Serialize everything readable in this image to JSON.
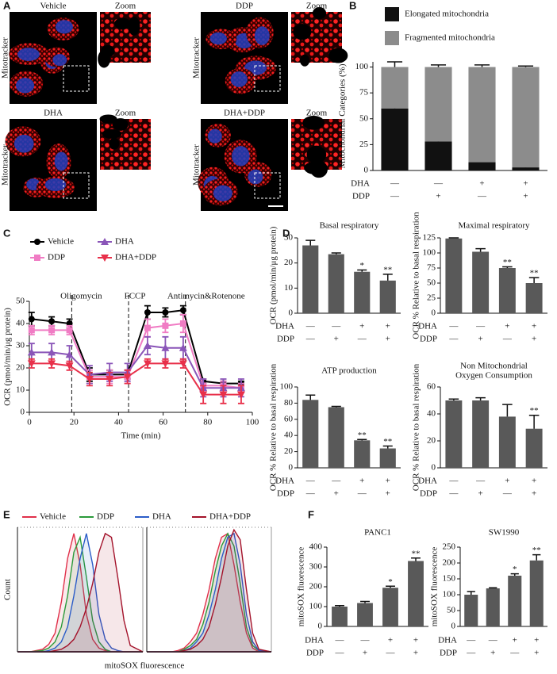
{
  "panel_labels": [
    "A",
    "B",
    "C",
    "D",
    "E",
    "F"
  ],
  "panel_a": {
    "stain": "Mitotracker",
    "zoom": "Zoom",
    "conditions": [
      "Vehicle",
      "DDP",
      "DHA",
      "DHA+DDP"
    ]
  },
  "chart_data": [
    {
      "type": "bar",
      "stacked": true,
      "ylabel": "Mitochondrial Categories (%)",
      "ylim": [
        0,
        105
      ],
      "yticks": [
        0,
        25,
        50,
        75,
        100
      ],
      "series": [
        {
          "name": "Elongated mitochondria",
          "color": "#111111",
          "values": [
            60,
            28,
            8,
            3
          ],
          "errors": [
            5,
            3,
            3,
            2
          ]
        },
        {
          "name": "Fragmented mitochondria",
          "color": "#8c8c8c",
          "values": [
            40,
            72,
            92,
            97
          ],
          "errors": [
            5,
            2,
            2,
            1
          ]
        }
      ],
      "factors": [
        {
          "name": "DHA",
          "values": [
            "—",
            "—",
            "+",
            "+"
          ]
        },
        {
          "name": "DDP",
          "values": [
            "—",
            "+",
            "—",
            "+"
          ]
        }
      ]
    },
    {
      "type": "line",
      "xlabel": "Time (min)",
      "ylabel": "OCR (pmol/min/μg protein)",
      "xlim": [
        0,
        100
      ],
      "xticks": [
        0,
        20,
        40,
        60,
        80,
        100
      ],
      "ylim": [
        0,
        50
      ],
      "yticks": [
        0,
        10,
        20,
        30,
        40,
        50
      ],
      "x": [
        1,
        10,
        18,
        27,
        36,
        44,
        53,
        61,
        69,
        78,
        87,
        95
      ],
      "events": [
        {
          "x": 19,
          "label": "Oligomycin"
        },
        {
          "x": 44.5,
          "label": "FCCP"
        },
        {
          "x": 70,
          "label": "Antimycin&Rotenone"
        }
      ],
      "series": [
        {
          "name": "Vehicle",
          "color": "#000000",
          "marker": "circle",
          "values": [
            42,
            41,
            40,
            17,
            17,
            17,
            45,
            45,
            46,
            14,
            13,
            13
          ],
          "errors": [
            3,
            2,
            2,
            3,
            2,
            2,
            3,
            2,
            2,
            1,
            1,
            1
          ]
        },
        {
          "name": "DDP",
          "color": "#f07cc4",
          "marker": "square",
          "values": [
            37,
            37,
            37,
            16,
            16,
            16,
            38,
            39,
            40,
            12,
            12,
            11
          ],
          "errors": [
            2,
            2,
            2,
            3,
            3,
            3,
            4,
            3,
            4,
            3,
            2,
            2
          ]
        },
        {
          "name": "DHA",
          "color": "#8a55b8",
          "marker": "triangle",
          "values": [
            27,
            27,
            26,
            17,
            18,
            18,
            30,
            29,
            29,
            11,
            11,
            11
          ],
          "errors": [
            4,
            4,
            4,
            4,
            4,
            4,
            4,
            5,
            5,
            4,
            4,
            4
          ]
        },
        {
          "name": "DHA+DDP",
          "color": "#e8304a",
          "marker": "triangle-down",
          "values": [
            22,
            22,
            21,
            15,
            15,
            16,
            22,
            22,
            22,
            8,
            8,
            8
          ],
          "errors": [
            2,
            2,
            2,
            3,
            3,
            3,
            2,
            2,
            2,
            4,
            4,
            4
          ]
        }
      ]
    },
    {
      "type": "bar",
      "title": "Basal respiratory",
      "ylabel": "OCR (pmol/min/μg protein)",
      "ylim": [
        0,
        30
      ],
      "yticks": [
        0,
        10,
        20,
        30
      ],
      "color": "#595959",
      "values": [
        27,
        23.5,
        16.5,
        13
      ],
      "errors": [
        2,
        0.5,
        0.7,
        2.5
      ],
      "significance": [
        null,
        null,
        "*",
        "**"
      ],
      "factors": [
        {
          "name": "DHA",
          "values": [
            "—",
            "—",
            "+",
            "+"
          ]
        },
        {
          "name": "DDP",
          "values": [
            "—",
            "+",
            "—",
            "+"
          ]
        }
      ]
    },
    {
      "type": "bar",
      "title": "Maximal respiratory",
      "ylabel": "OCR % Relative to basal respiration",
      "ylim": [
        0,
        125
      ],
      "yticks": [
        0,
        25,
        50,
        75,
        100,
        125
      ],
      "color": "#595959",
      "values": [
        124,
        102,
        75,
        50
      ],
      "errors": [
        1,
        5,
        2,
        9
      ],
      "significance": [
        null,
        null,
        "**",
        "**"
      ],
      "factors": [
        {
          "name": "DHA",
          "values": [
            "—",
            "—",
            "+",
            "+"
          ]
        },
        {
          "name": "DDP",
          "values": [
            "—",
            "+",
            "—",
            "+"
          ]
        }
      ]
    },
    {
      "type": "bar",
      "title": "ATP production",
      "ylabel": "OCR % Relative to basal respiration",
      "ylim": [
        0,
        100
      ],
      "yticks": [
        0,
        20,
        40,
        60,
        80,
        100
      ],
      "color": "#595959",
      "values": [
        84,
        75,
        34,
        24
      ],
      "errors": [
        6,
        1,
        1,
        3
      ],
      "significance": [
        null,
        null,
        "**",
        "**"
      ],
      "factors": [
        {
          "name": "DHA",
          "values": [
            "—",
            "—",
            "+",
            "+"
          ]
        },
        {
          "name": "DDP",
          "values": [
            "—",
            "+",
            "—",
            "+"
          ]
        }
      ]
    },
    {
      "type": "bar",
      "title": [
        "Non Mitochondrial",
        "Oxygen Consumption"
      ],
      "ylabel": "OCR % Relative to basal respiration",
      "ylim": [
        0,
        60
      ],
      "yticks": [
        0,
        20,
        40,
        60
      ],
      "color": "#595959",
      "values": [
        50,
        50,
        38,
        29
      ],
      "errors": [
        1,
        2,
        9,
        10
      ],
      "significance": [
        null,
        null,
        null,
        "**"
      ],
      "factors": [
        {
          "name": "DHA",
          "values": [
            "—",
            "—",
            "+",
            "+"
          ]
        },
        {
          "name": "DDP",
          "values": [
            "—",
            "+",
            "—",
            "+"
          ]
        }
      ]
    },
    {
      "type": "area",
      "xlabel": "mitoSOX  fluorescence",
      "ylabel": "Count",
      "xlim": [
        0,
        100
      ],
      "ylim": [
        0,
        100
      ],
      "x": [
        0,
        10,
        20,
        25,
        30,
        35,
        40,
        45,
        50,
        55,
        60,
        65,
        70,
        75,
        80,
        85,
        90,
        100
      ],
      "series": [
        {
          "name": "Vehicle",
          "color": "#e0304a",
          "left": [
            0,
            0,
            2,
            6,
            15,
            40,
            75,
            95,
            70,
            30,
            10,
            3,
            1,
            0,
            0,
            0,
            0,
            0
          ],
          "right": [
            0,
            0,
            0,
            1,
            3,
            8,
            15,
            30,
            50,
            75,
            92,
            95,
            70,
            40,
            15,
            3,
            0,
            0
          ]
        },
        {
          "name": "DDP",
          "color": "#2a9a3a",
          "left": [
            0,
            0,
            1,
            3,
            8,
            20,
            45,
            80,
            92,
            60,
            25,
            8,
            2,
            0,
            0,
            0,
            0,
            0
          ],
          "right": [
            0,
            0,
            0,
            0,
            2,
            5,
            10,
            22,
            40,
            65,
            85,
            95,
            85,
            55,
            20,
            5,
            1,
            0
          ]
        },
        {
          "name": "DHA",
          "color": "#2b5cc8",
          "left": [
            0,
            0,
            0,
            1,
            3,
            8,
            20,
            45,
            75,
            95,
            70,
            30,
            10,
            3,
            1,
            0,
            0,
            0
          ],
          "right": [
            0,
            0,
            0,
            0,
            1,
            3,
            8,
            15,
            30,
            50,
            75,
            92,
            95,
            70,
            30,
            8,
            1,
            0
          ]
        },
        {
          "name": "DHA+DDP",
          "color": "#a3122a",
          "left": [
            0,
            0,
            0,
            0,
            1,
            2,
            5,
            10,
            20,
            35,
            55,
            80,
            95,
            92,
            60,
            25,
            5,
            0
          ],
          "right": [
            0,
            0,
            0,
            0,
            1,
            2,
            5,
            10,
            20,
            38,
            60,
            85,
            98,
            90,
            50,
            15,
            2,
            0
          ]
        }
      ]
    },
    {
      "type": "bar",
      "title": "PANC1",
      "ylabel": "mitoSOX  fluorescence",
      "ylim": [
        0,
        400
      ],
      "yticks": [
        0,
        100,
        200,
        300,
        400
      ],
      "color": "#595959",
      "values": [
        100,
        118,
        195,
        330
      ],
      "errors": [
        5,
        8,
        8,
        15
      ],
      "significance": [
        null,
        null,
        "*",
        "**"
      ],
      "factors": [
        {
          "name": "DHA",
          "values": [
            "—",
            "—",
            "+",
            "+"
          ]
        },
        {
          "name": "DDP",
          "values": [
            "—",
            "+",
            "—",
            "+"
          ]
        }
      ]
    },
    {
      "type": "bar",
      "title": "SW1990",
      "ylabel": "mitoSOX  fluorescence",
      "ylim": [
        0,
        250
      ],
      "yticks": [
        0,
        50,
        100,
        150,
        200,
        250
      ],
      "color": "#595959",
      "values": [
        100,
        120,
        160,
        208
      ],
      "errors": [
        10,
        2,
        6,
        18
      ],
      "significance": [
        null,
        null,
        "*",
        "**"
      ],
      "factors": [
        {
          "name": "DHA",
          "values": [
            "—",
            "—",
            "+",
            "+"
          ]
        },
        {
          "name": "DDP",
          "values": [
            "—",
            "+",
            "—",
            "+"
          ]
        }
      ]
    }
  ]
}
